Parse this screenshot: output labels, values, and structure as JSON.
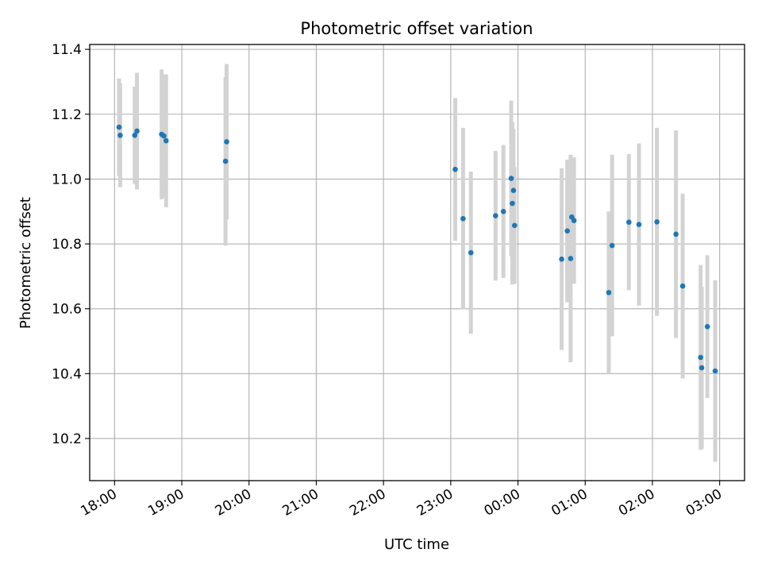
{
  "chart_data": {
    "type": "scatter",
    "title": "Photometric offset variation",
    "xlabel": "UTC time",
    "ylabel": "Photometric offset",
    "x_tick_labels": [
      "18:00",
      "19:00",
      "20:00",
      "21:00",
      "22:00",
      "23:00",
      "00:00",
      "01:00",
      "02:00",
      "03:00"
    ],
    "y_tick_labels": [
      "10.2",
      "10.4",
      "10.6",
      "10.8",
      "11.0",
      "11.2",
      "11.4"
    ],
    "xlim_hours": [
      17.63,
      27.37
    ],
    "ylim": [
      10.07,
      11.415
    ],
    "grid": true,
    "point_color": "#1f77b4",
    "errorbar_color": "#d3d3d3",
    "series": [
      {
        "x": [
          "18:04",
          "18:05",
          "18:18",
          "18:20",
          "18:42",
          "18:44",
          "18:46",
          "19:39",
          "19:40",
          "23:04",
          "23:11",
          "23:18",
          "23:40",
          "23:47",
          "23:54",
          "23:55",
          "23:56",
          "23:57",
          "00:39",
          "00:44",
          "00:47",
          "00:48",
          "00:50",
          "01:21",
          "01:24",
          "01:39",
          "01:48",
          "02:04",
          "02:21",
          "02:27",
          "02:43",
          "02:44",
          "02:49",
          "02:56"
        ],
        "y": [
          11.16,
          11.135,
          11.135,
          11.148,
          11.138,
          11.133,
          11.118,
          11.055,
          11.115,
          11.03,
          10.878,
          10.773,
          10.887,
          10.9,
          11.002,
          10.925,
          10.965,
          10.857,
          10.753,
          10.84,
          10.755,
          10.883,
          10.872,
          10.65,
          10.795,
          10.867,
          10.86,
          10.868,
          10.83,
          10.67,
          10.45,
          10.418,
          10.545,
          10.408
        ],
        "yerr": [
          0.15,
          0.16,
          0.15,
          0.18,
          0.2,
          0.19,
          0.205,
          0.26,
          0.24,
          0.22,
          0.28,
          0.25,
          0.2,
          0.205,
          0.24,
          0.25,
          0.19,
          0.18,
          0.28,
          0.22,
          0.32,
          0.18,
          0.195,
          0.25,
          0.28,
          0.21,
          0.25,
          0.29,
          0.32,
          0.285,
          0.285,
          0.25,
          0.22,
          0.28
        ]
      }
    ]
  }
}
